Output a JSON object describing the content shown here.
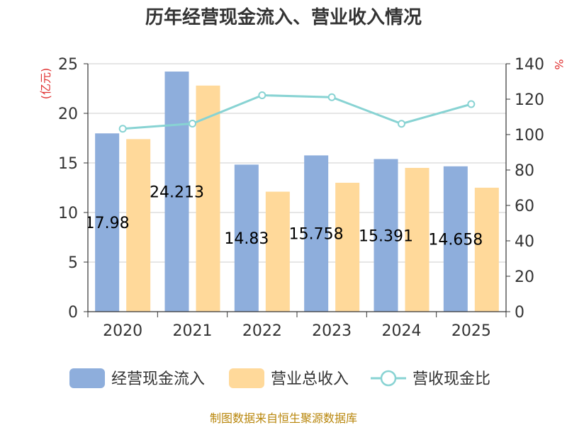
{
  "chart_data": {
    "type": "bar",
    "title": "历年经营现金流入、营业收入情况",
    "categories": [
      "2020",
      "2021",
      "2022",
      "2023",
      "2024",
      "2025"
    ],
    "y_left": {
      "unit": "(亿元)",
      "ylim": [
        0,
        25
      ],
      "ticks": [
        "0",
        "5",
        "10",
        "15",
        "20",
        "25"
      ]
    },
    "y_right": {
      "unit": "%",
      "ylim": [
        0,
        140
      ],
      "ticks": [
        "0",
        "20",
        "40",
        "60",
        "80",
        "100",
        "120",
        "140"
      ]
    },
    "series": [
      {
        "name": "经营现金流入",
        "type": "bar",
        "axis": "left",
        "color": "#8eaedc",
        "values": [
          17.98,
          24.213,
          14.83,
          15.758,
          15.391,
          14.658
        ],
        "labels": [
          "17.98",
          "24.213",
          "14.83",
          "15.758",
          "15.391",
          "14.658"
        ]
      },
      {
        "name": "营业总收入",
        "type": "bar",
        "axis": "left",
        "color": "#ffd99a",
        "values": [
          17.4,
          22.8,
          12.1,
          13.0,
          14.5,
          12.5
        ]
      },
      {
        "name": "营收现金比",
        "type": "line",
        "axis": "right",
        "color": "#88d3d3",
        "values": [
          103.3,
          106.2,
          122.2,
          121.1,
          106.1,
          117.2
        ]
      }
    ],
    "grid": true,
    "legend_position": "bottom"
  },
  "footer": {
    "source": "制图数据来自恒生聚源数据库"
  }
}
